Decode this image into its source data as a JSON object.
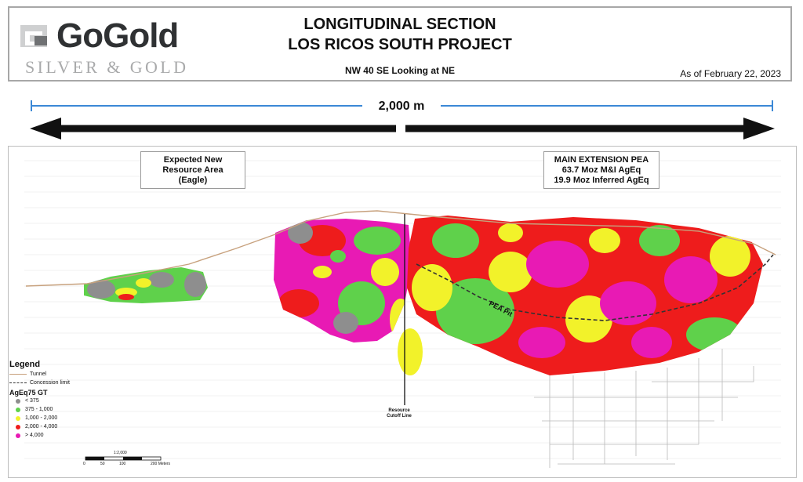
{
  "header": {
    "logo_word": "GoGold",
    "logo_tagline": "SILVER & GOLD",
    "title_line1": "LONGITUDINAL SECTION",
    "title_line2": "LOS RICOS SOUTH PROJECT",
    "subtitle": "NW 40 SE Looking at NE",
    "as_of": "As of February 22, 2023"
  },
  "scale": {
    "label": "2,000 m"
  },
  "annotations": {
    "eagle_box": [
      "Expected New",
      "Resource Area",
      "(Eagle)"
    ],
    "pea_box": [
      "MAIN EXTENSION PEA",
      "63.7 Moz M&I AgEq",
      "19.9 Moz Inferred AgEq"
    ],
    "pea_pit_label": "PEA Pit",
    "cutoff_label": [
      "Resource",
      "Cutoff Line"
    ]
  },
  "legend": {
    "title": "Legend",
    "lines": [
      {
        "label": "Tunnel",
        "style": "solid",
        "color": "#c7a17d"
      },
      {
        "label": "Concession limit",
        "style": "dashed",
        "color": "#333333"
      }
    ],
    "grade_title": "AgEq75 GT",
    "grades": [
      {
        "label": "< 375",
        "color": "#8e8e8e"
      },
      {
        "label": "375 - 1,000",
        "color": "#5fd14b"
      },
      {
        "label": "1,000 - 2,000",
        "color": "#f2f22a"
      },
      {
        "label": "2,000 - 4,000",
        "color": "#ee1c1c"
      },
      {
        "label": "> 4,000",
        "color": "#e81ab4"
      }
    ]
  },
  "scalebar": {
    "title": "1:2,000",
    "ticks": [
      "0",
      "50",
      "100",
      "200 Meters"
    ]
  },
  "colors": {
    "low": "#8e8e8e",
    "green": "#5fd14b",
    "yellow": "#f2f22a",
    "red": "#ee1c1c",
    "magenta": "#e81ab4",
    "tunnel": "#c7a17d",
    "scale_line": "#3b88d6"
  }
}
